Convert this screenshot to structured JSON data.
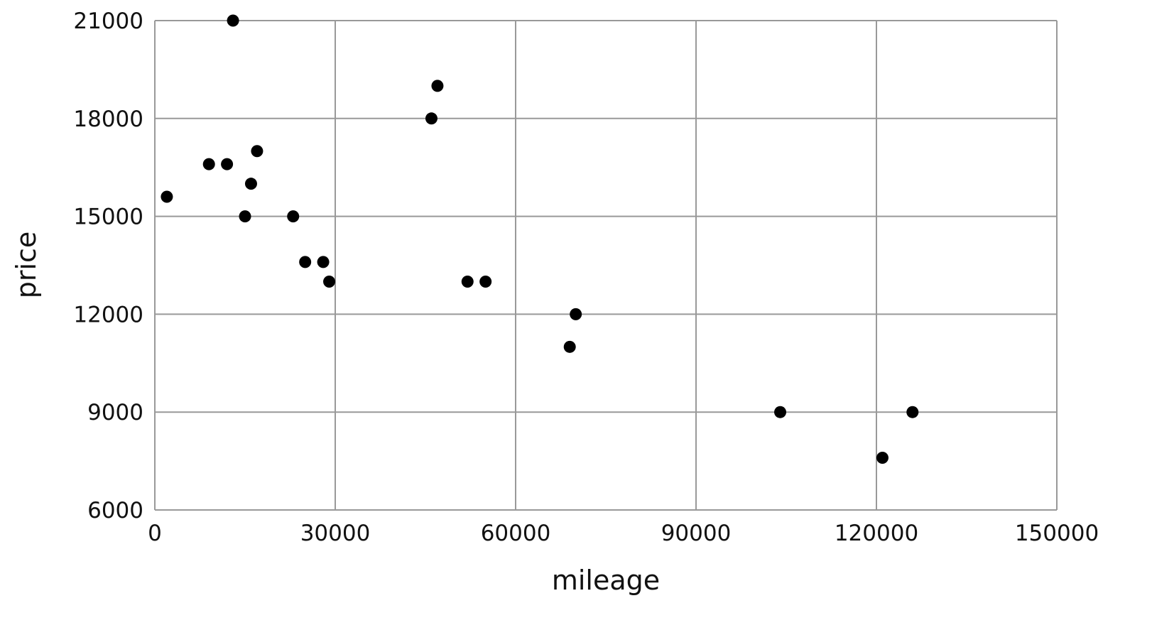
{
  "chart_data": {
    "type": "scatter",
    "title": "",
    "xlabel": "mileage",
    "ylabel": "price",
    "xlim": [
      0,
      150000
    ],
    "ylim": [
      6000,
      21000
    ],
    "xticks": [
      0,
      30000,
      60000,
      90000,
      120000,
      150000
    ],
    "yticks": [
      6000,
      9000,
      12000,
      15000,
      18000,
      21000
    ],
    "grid": true,
    "colors": {
      "point": "#000000",
      "grid": "#999999"
    },
    "points": [
      {
        "x": 2000,
        "y": 15600
      },
      {
        "x": 9000,
        "y": 16600
      },
      {
        "x": 12000,
        "y": 16600
      },
      {
        "x": 13000,
        "y": 21000
      },
      {
        "x": 15000,
        "y": 15000
      },
      {
        "x": 16000,
        "y": 16000
      },
      {
        "x": 17000,
        "y": 17000
      },
      {
        "x": 23000,
        "y": 15000
      },
      {
        "x": 25000,
        "y": 13600
      },
      {
        "x": 28000,
        "y": 13600
      },
      {
        "x": 29000,
        "y": 13000
      },
      {
        "x": 46000,
        "y": 18000
      },
      {
        "x": 47000,
        "y": 19000
      },
      {
        "x": 52000,
        "y": 13000
      },
      {
        "x": 55000,
        "y": 13000
      },
      {
        "x": 69000,
        "y": 11000
      },
      {
        "x": 70000,
        "y": 12000
      },
      {
        "x": 104000,
        "y": 9000
      },
      {
        "x": 121000,
        "y": 7600
      },
      {
        "x": 126000,
        "y": 9000
      }
    ]
  }
}
